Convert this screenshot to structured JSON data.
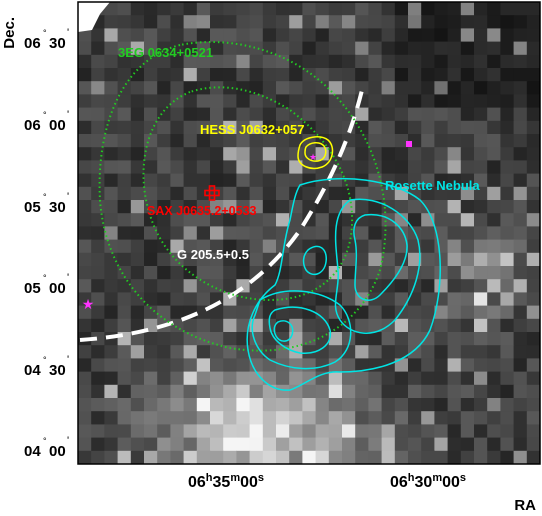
{
  "axes": {
    "y_title": "Dec.",
    "x_title": "RA",
    "y_ticks": [
      {
        "d": "06",
        "m": "30",
        "value": 6.5
      },
      {
        "d": "06",
        "m": "00",
        "value": 6.0
      },
      {
        "d": "05",
        "m": "30",
        "value": 5.5
      },
      {
        "d": "05",
        "m": "00",
        "value": 5.0
      },
      {
        "d": "04",
        "m": "30",
        "value": 4.5
      },
      {
        "d": "04",
        "m": "00",
        "value": 4.0
      }
    ],
    "x_ticks": [
      {
        "h": "06",
        "m": "35",
        "s": "00"
      },
      {
        "h": "06",
        "m": "30",
        "s": "00"
      }
    ],
    "unit_h": "h",
    "unit_m": "m",
    "unit_s": "s",
    "deg_mark": "°",
    "min_mark": "'"
  },
  "labels": {
    "egret": "3EG 0634+0521",
    "hess": "HESS J0632+057",
    "sax": "SAX J0635.2+0533",
    "snr": "G 205.5+0.5",
    "rosette": "Rosette Nebula"
  },
  "colors": {
    "egret": "#22cc22",
    "hess": "#ffff00",
    "sax": "#ff0000",
    "snr": "#ffffff",
    "rosette": "#00e5e5",
    "star": "#ff33ff"
  }
}
